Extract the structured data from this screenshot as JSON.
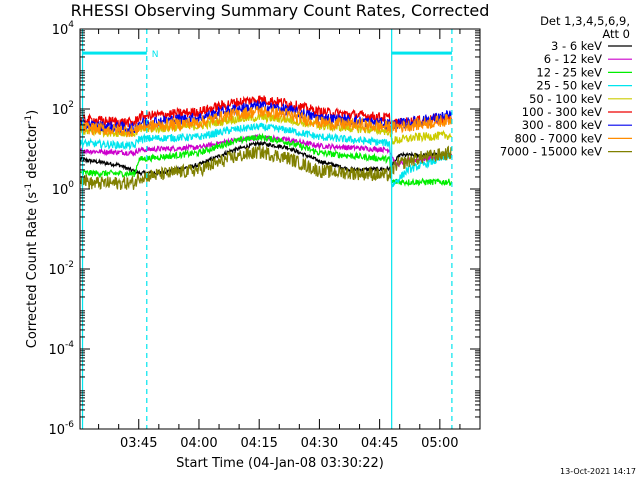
{
  "chart_data": {
    "type": "line",
    "title": "RHESSI Observing Summary Count Rates, Corrected",
    "xlabel": "Start Time (04-Jan-08 03:30:22)",
    "ylabel_prefix": "Corrected Count Rate (s",
    "ylabel_sup1": "-1",
    "ylabel_mid": " detector",
    "ylabel_sup2": "-1",
    "ylabel_suffix": ")",
    "y_scale": "log",
    "ylim": [
      1e-06,
      10000
    ],
    "x_range": [
      "03:30:22",
      "05:10:00"
    ],
    "x_ticks": [
      "03:45",
      "04:00",
      "04:15",
      "04:30",
      "04:45",
      "05:00"
    ],
    "y_ticks": [
      {
        "value": 1e-06,
        "base": "10",
        "exp": "-6"
      },
      {
        "value": 0.0001,
        "base": "10",
        "exp": "-4"
      },
      {
        "value": 0.01,
        "base": "10",
        "exp": "-2"
      },
      {
        "value": 1,
        "base": "10",
        "exp": "0"
      },
      {
        "value": 100,
        "base": "10",
        "exp": "2"
      },
      {
        "value": 10000,
        "base": "10",
        "exp": "4"
      }
    ],
    "legend_header": [
      "Det 1,3,4,5,6,9,",
      "Att 0"
    ],
    "series": [
      {
        "name": "3 - 6 keV",
        "color": "#000000",
        "profile": [
          [
            "03:30:22",
            5.5
          ],
          [
            "03:40:00",
            4
          ],
          [
            "03:45:00",
            2.5
          ],
          [
            "03:50:00",
            2.5
          ],
          [
            "04:00:00",
            4
          ],
          [
            "04:08:00",
            9
          ],
          [
            "04:15:00",
            14
          ],
          [
            "04:22:00",
            11
          ],
          [
            "04:30:00",
            5
          ],
          [
            "04:38:00",
            3
          ],
          [
            "04:47:30",
            3.2
          ],
          [
            "04:50:00",
            7
          ],
          [
            "05:03:00",
            7
          ]
        ]
      },
      {
        "name": "6 - 12 keV",
        "color": "#cc00cc",
        "profile": [
          [
            "03:30:22",
            9
          ],
          [
            "03:44:00",
            8
          ],
          [
            "03:45:00",
            9.5
          ],
          [
            "04:00:00",
            11
          ],
          [
            "04:08:00",
            16
          ],
          [
            "04:15:00",
            20
          ],
          [
            "04:22:00",
            17
          ],
          [
            "04:30:00",
            12
          ],
          [
            "04:47:30",
            9.5
          ],
          [
            "04:49:00",
            4
          ],
          [
            "04:52:00",
            5
          ],
          [
            "05:03:00",
            7
          ]
        ]
      },
      {
        "name": "12 - 25 keV",
        "color": "#00ee00",
        "profile": [
          [
            "03:30:22",
            2.5
          ],
          [
            "03:44:00",
            2.4
          ],
          [
            "03:45:00",
            5.5
          ],
          [
            "04:00:00",
            8
          ],
          [
            "04:08:00",
            15
          ],
          [
            "04:15:00",
            20
          ],
          [
            "04:22:00",
            15
          ],
          [
            "04:30:00",
            8
          ],
          [
            "04:47:30",
            5.5
          ],
          [
            "04:48:00",
            1.5
          ],
          [
            "05:03:00",
            1.5
          ]
        ]
      },
      {
        "name": "25 - 50 keV",
        "color": "#00e5ee",
        "profile": [
          [
            "03:30:22",
            14
          ],
          [
            "03:44:00",
            12
          ],
          [
            "03:45:00",
            18
          ],
          [
            "04:00:00",
            20
          ],
          [
            "04:08:00",
            30
          ],
          [
            "04:15:00",
            36
          ],
          [
            "04:22:00",
            30
          ],
          [
            "04:30:00",
            20
          ],
          [
            "04:47:30",
            14
          ],
          [
            "04:48:00",
            1.2
          ],
          [
            "04:52:00",
            3
          ],
          [
            "05:03:00",
            7
          ]
        ]
      },
      {
        "name": "50 - 100 keV",
        "color": "#cccc00",
        "profile": [
          [
            "03:30:22",
            28
          ],
          [
            "03:44:00",
            25
          ],
          [
            "03:45:00",
            30
          ],
          [
            "04:00:00",
            38
          ],
          [
            "04:08:00",
            55
          ],
          [
            "04:15:00",
            62
          ],
          [
            "04:22:00",
            55
          ],
          [
            "04:30:00",
            38
          ],
          [
            "04:47:30",
            28
          ],
          [
            "04:48:00",
            16
          ],
          [
            "04:55:00",
            20
          ],
          [
            "05:03:00",
            22
          ]
        ]
      },
      {
        "name": "100 - 300 keV",
        "color": "#ee0000",
        "profile": [
          [
            "03:30:22",
            55
          ],
          [
            "03:44:00",
            45
          ],
          [
            "03:45:00",
            65
          ],
          [
            "04:00:00",
            85
          ],
          [
            "04:08:00",
            140
          ],
          [
            "04:15:00",
            175
          ],
          [
            "04:22:00",
            140
          ],
          [
            "04:30:00",
            85
          ],
          [
            "04:47:30",
            60
          ],
          [
            "04:48:00",
            42
          ],
          [
            "04:55:00",
            52
          ],
          [
            "05:03:00",
            58
          ]
        ]
      },
      {
        "name": "300 - 800 keV",
        "color": "#0000ee",
        "profile": [
          [
            "03:30:22",
            40
          ],
          [
            "03:44:00",
            33
          ],
          [
            "03:45:00",
            45
          ],
          [
            "04:00:00",
            60
          ],
          [
            "04:08:00",
            95
          ],
          [
            "04:15:00",
            120
          ],
          [
            "04:22:00",
            95
          ],
          [
            "04:30:00",
            60
          ],
          [
            "04:47:30",
            42
          ],
          [
            "04:48:00",
            40
          ],
          [
            "04:55:00",
            50
          ],
          [
            "05:03:00",
            70
          ]
        ]
      },
      {
        "name": "800 - 7000 keV",
        "color": "#ff8c00",
        "profile": [
          [
            "03:30:22",
            34
          ],
          [
            "03:44:00",
            28
          ],
          [
            "03:45:00",
            36
          ],
          [
            "04:00:00",
            46
          ],
          [
            "04:08:00",
            72
          ],
          [
            "04:15:00",
            88
          ],
          [
            "04:22:00",
            72
          ],
          [
            "04:30:00",
            46
          ],
          [
            "04:47:30",
            36
          ],
          [
            "04:48:00",
            34
          ],
          [
            "04:55:00",
            42
          ],
          [
            "05:03:00",
            55
          ]
        ]
      },
      {
        "name": "7000 - 15000 keV",
        "color": "#808000",
        "profile": [
          [
            "03:30:22",
            2
          ],
          [
            "03:33:00",
            1.4
          ],
          [
            "03:44:00",
            1.4
          ],
          [
            "03:45:00",
            2
          ],
          [
            "04:00:00",
            3
          ],
          [
            "04:08:00",
            6
          ],
          [
            "04:15:00",
            8.5
          ],
          [
            "04:22:00",
            6
          ],
          [
            "04:30:00",
            2.8
          ],
          [
            "04:47:30",
            2.2
          ],
          [
            "04:49:00",
            4
          ],
          [
            "04:55:00",
            6
          ],
          [
            "05:03:00",
            8
          ]
        ]
      }
    ],
    "annotations": {
      "vertical_lines": [
        "03:31:00",
        "03:47:00",
        "04:48:00",
        "05:03:00"
      ],
      "flag_bars": [
        {
          "from": "03:31:00",
          "to": "03:47:00",
          "value": 2500
        },
        {
          "from": "04:48:00",
          "to": "05:03:00",
          "value": 2500
        }
      ],
      "flag_label": "N",
      "line_color": "#00e5ee"
    },
    "timestamp": "13-Oct-2021 14:17"
  }
}
